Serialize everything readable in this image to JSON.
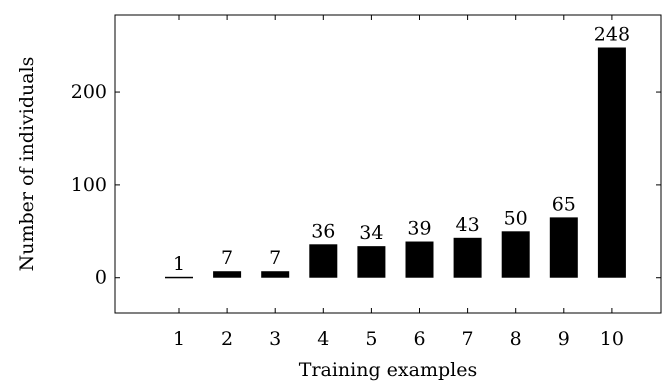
{
  "chart_data": {
    "type": "bar",
    "categories": [
      "1",
      "2",
      "3",
      "4",
      "5",
      "6",
      "7",
      "8",
      "9",
      "10"
    ],
    "values": [
      1,
      7,
      7,
      36,
      34,
      39,
      43,
      50,
      65,
      248
    ],
    "data_labels": [
      "1",
      "7",
      "7",
      "36",
      "34",
      "39",
      "43",
      "50",
      "65",
      "248"
    ],
    "xlabel": "Training examples",
    "ylabel": "Number of individuals",
    "yticks": [
      0,
      100,
      200
    ],
    "ylim": [
      -38,
      283
    ],
    "grid": false,
    "legend": "none",
    "bar_color": "#000000"
  }
}
